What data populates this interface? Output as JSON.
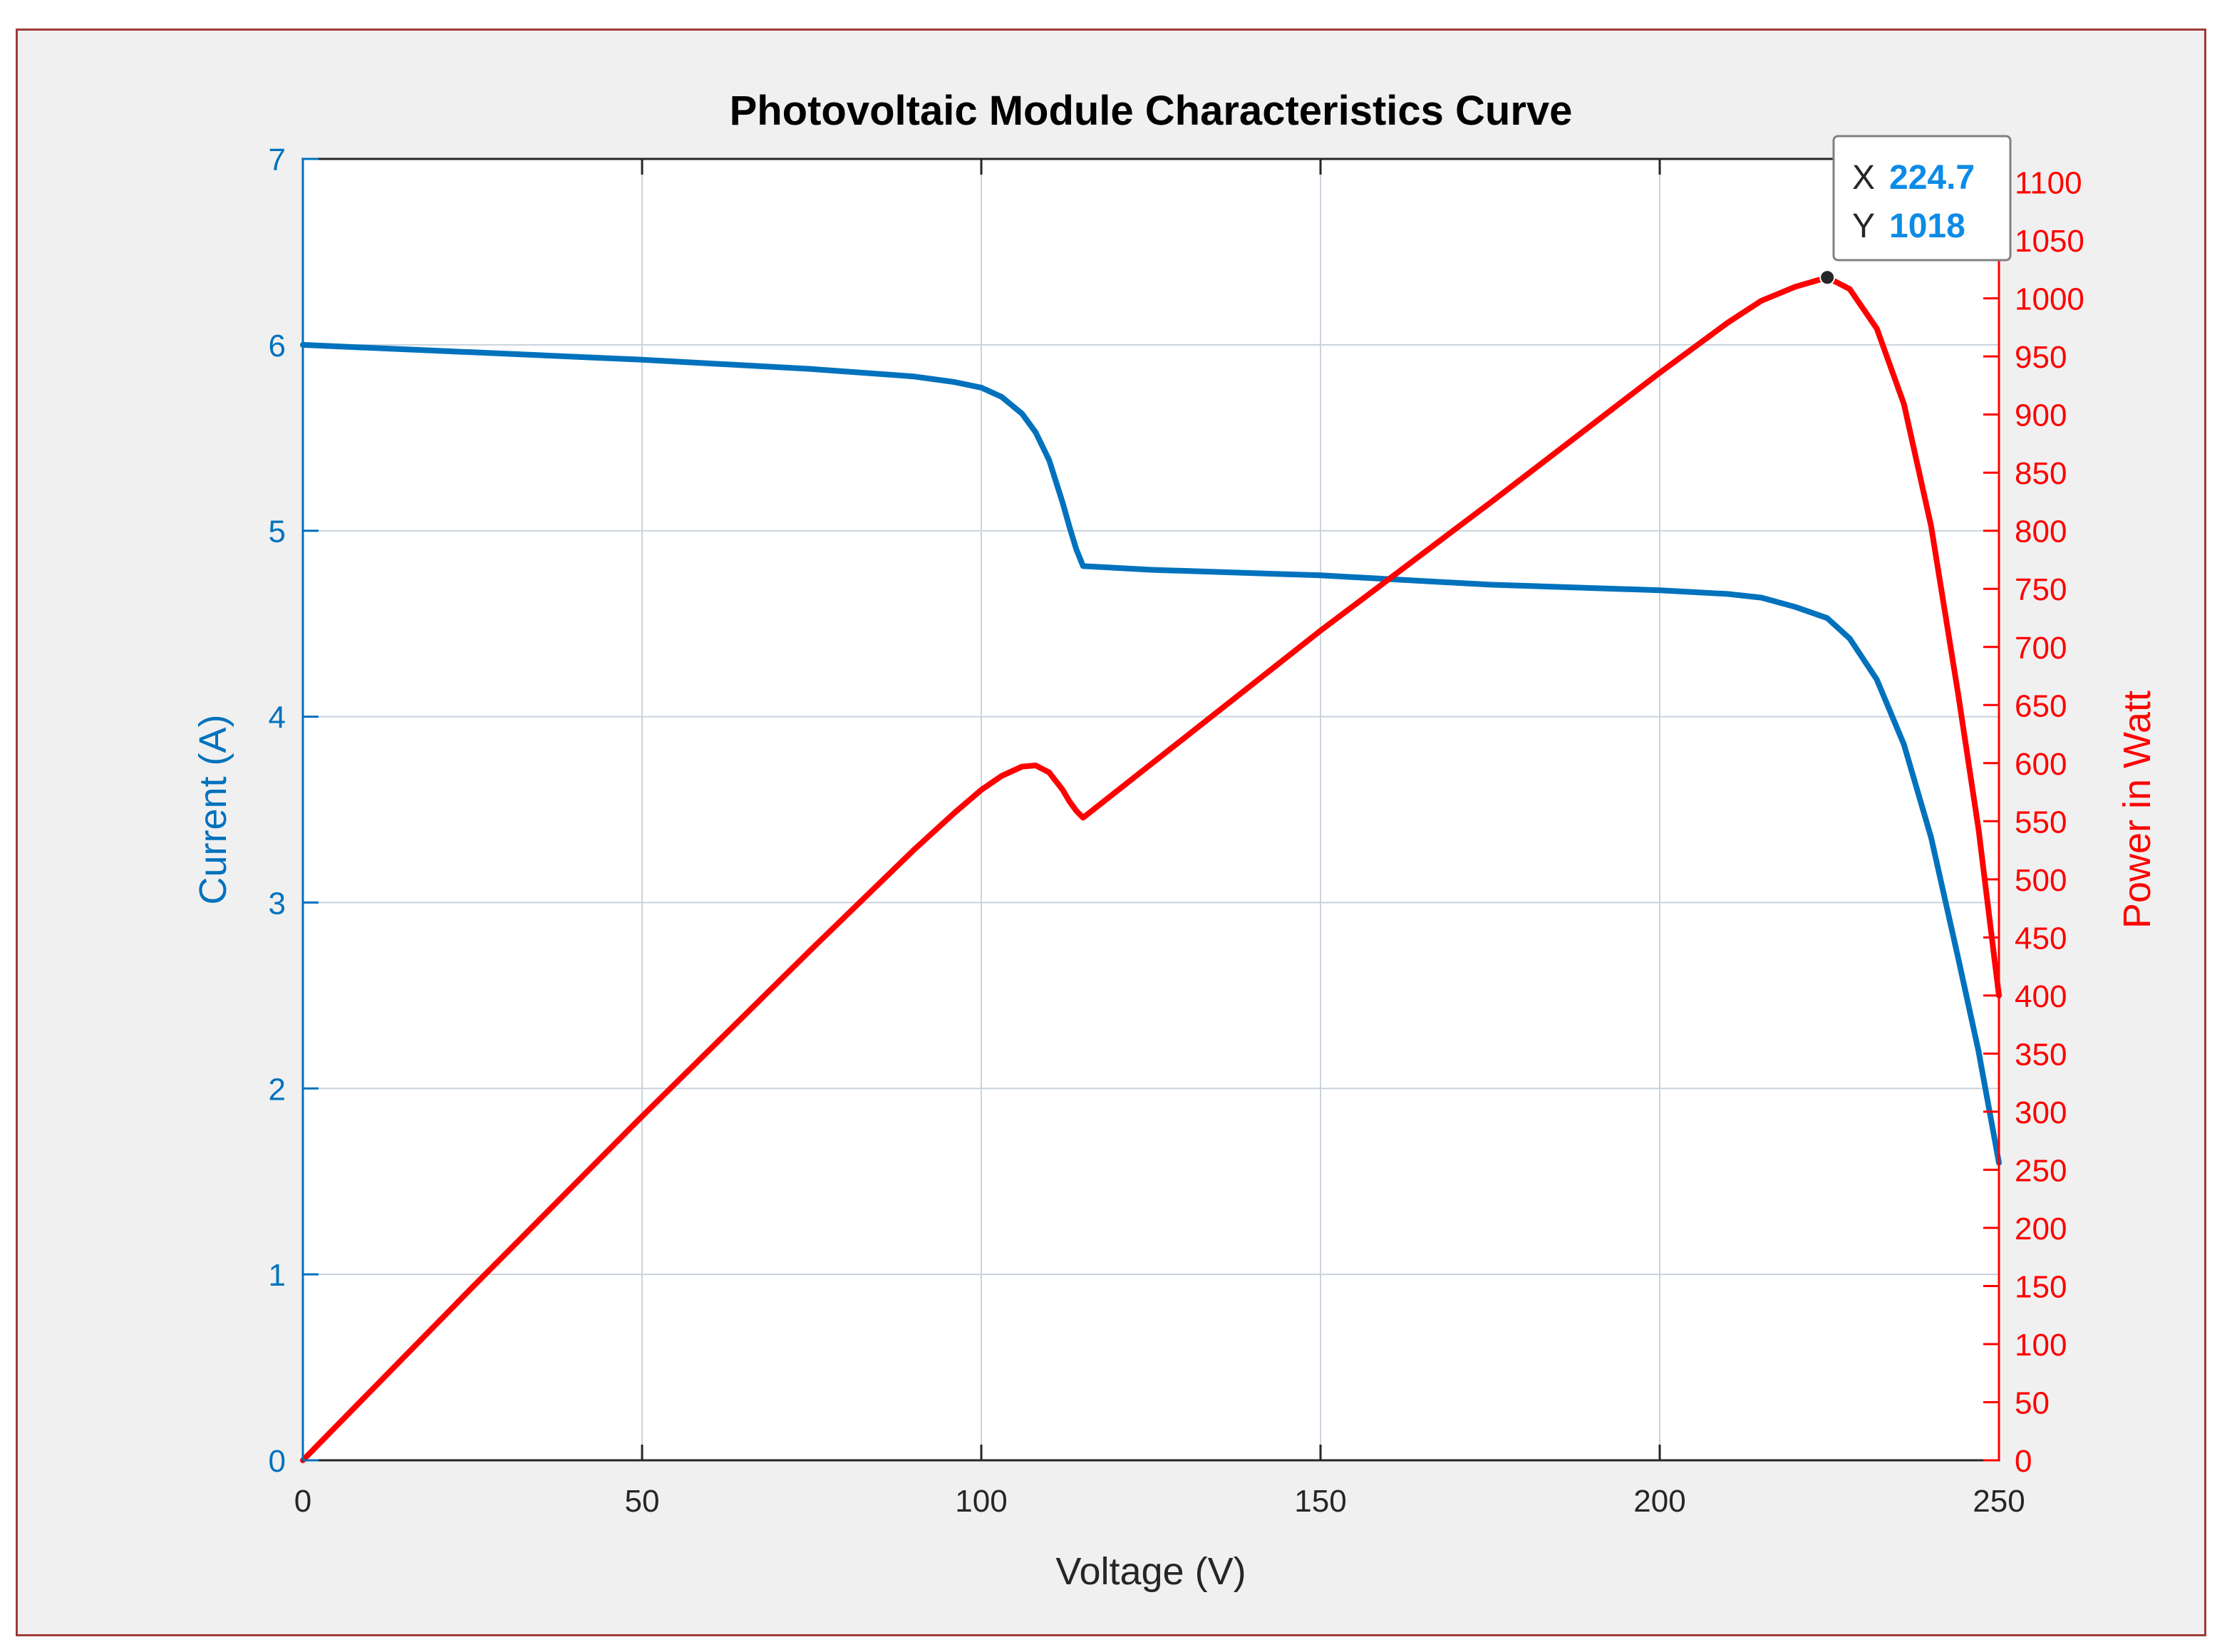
{
  "colors": {
    "current": "#0072bd",
    "power": "#ff0000",
    "grid": "#c9d3dc",
    "tooltip_value": "#0d8be6",
    "text": "#262626",
    "frame_border": "#9e3a3a",
    "background": "#f0f0f0"
  },
  "chart_data": {
    "type": "line",
    "title": "Photovoltaic Module Characteristics Curve",
    "xlabel": "Voltage (V)",
    "ylabel_left": "Current (A)",
    "ylabel_right": "Power in Watt",
    "xlim": [
      0,
      250
    ],
    "ylim_left": [
      0,
      7
    ],
    "ylim_right": [
      0,
      1120
    ],
    "grid": true,
    "x_ticks": [
      "0",
      "50",
      "100",
      "150",
      "200",
      "250"
    ],
    "y_left_ticks": [
      "0",
      "1",
      "2",
      "3",
      "4",
      "5",
      "6",
      "7"
    ],
    "y_right_ticks": [
      "0",
      "50",
      "100",
      "150",
      "200",
      "250",
      "300",
      "350",
      "400",
      "450",
      "500",
      "550",
      "600",
      "650",
      "700",
      "750",
      "800",
      "850",
      "900",
      "950",
      "1000",
      "1050",
      "1100"
    ],
    "series": [
      {
        "name": "Current (A)",
        "axis": "left",
        "x": [
          0,
          25,
          50,
          75,
          90,
          96,
          100,
          103,
          106,
          108,
          110,
          112,
          113,
          114,
          115,
          125,
          150,
          175,
          200,
          210,
          215,
          220,
          224.7,
          228,
          232,
          236,
          240,
          244,
          247,
          250
        ],
        "y": [
          6.0,
          5.96,
          5.92,
          5.87,
          5.83,
          5.8,
          5.77,
          5.72,
          5.63,
          5.53,
          5.38,
          5.15,
          5.02,
          4.9,
          4.81,
          4.79,
          4.76,
          4.71,
          4.68,
          4.66,
          4.64,
          4.59,
          4.53,
          4.42,
          4.2,
          3.85,
          3.35,
          2.7,
          2.2,
          1.6
        ]
      },
      {
        "name": "Power in Watt",
        "axis": "right",
        "x": [
          0,
          25,
          50,
          75,
          90,
          96,
          100,
          103,
          106,
          108,
          110,
          112,
          113,
          114,
          115,
          125,
          150,
          175,
          200,
          210,
          215,
          220,
          224.7,
          228,
          232,
          236,
          240,
          244,
          247,
          250
        ],
        "y": [
          0,
          149,
          296,
          440,
          525,
          557,
          577,
          589,
          597,
          598,
          592,
          577,
          567,
          559,
          553,
          599,
          714,
          824,
          936,
          979,
          998,
          1010,
          1018,
          1008,
          974,
          909,
          804,
          659,
          543,
          400
        ]
      }
    ],
    "datatip": {
      "x_label": "X",
      "x_value": "224.7",
      "y_label": "Y",
      "y_value": "1018",
      "at_x": 224.7,
      "at_y": 1018,
      "axis": "right"
    }
  }
}
